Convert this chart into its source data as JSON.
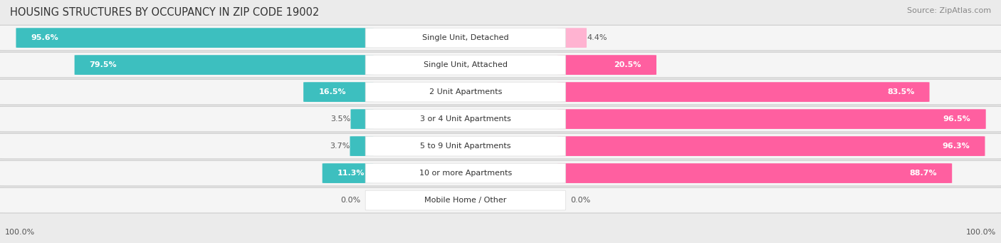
{
  "title": "HOUSING STRUCTURES BY OCCUPANCY IN ZIP CODE 19002",
  "source": "Source: ZipAtlas.com",
  "categories": [
    "Single Unit, Detached",
    "Single Unit, Attached",
    "2 Unit Apartments",
    "3 or 4 Unit Apartments",
    "5 to 9 Unit Apartments",
    "10 or more Apartments",
    "Mobile Home / Other"
  ],
  "owner_pct": [
    95.6,
    79.5,
    16.5,
    3.5,
    3.7,
    11.3,
    0.0
  ],
  "renter_pct": [
    4.4,
    20.5,
    83.5,
    96.5,
    96.3,
    88.7,
    0.0
  ],
  "owner_color": "#3DBFBF",
  "renter_color": "#FF5FA0",
  "renter_light_color": "#FFB3D1",
  "bg_color": "#EBEBEB",
  "row_bg_color": "#F5F5F5",
  "row_border_color": "#CCCCCC",
  "title_fontsize": 10.5,
  "source_fontsize": 8,
  "tick_fontsize": 8,
  "bar_label_fontsize": 8,
  "category_fontsize": 8,
  "legend_fontsize": 8
}
